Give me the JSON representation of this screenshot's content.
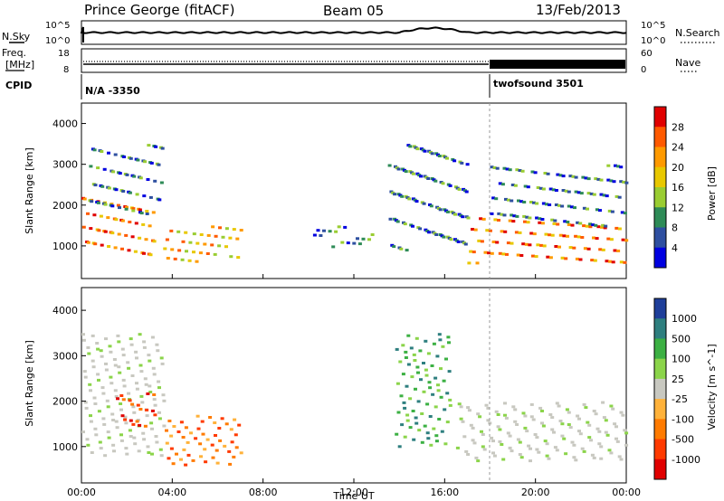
{
  "header": {
    "station": "Prince George (fitACF)",
    "beam": "Beam 05",
    "date": "13/Feb/2013"
  },
  "nsky_panel": {
    "left_label": "N.Sky",
    "right_label": "N.Search",
    "left_ticks": [
      "10^5",
      "10^0"
    ],
    "right_ticks": [
      "10^5",
      "10^0"
    ]
  },
  "freq_panel": {
    "left_label_1": "Freq.",
    "left_label_2": "[MHz]",
    "right_label": "Nave",
    "left_ticks": [
      "18",
      "8"
    ],
    "right_ticks": [
      "60",
      "0"
    ]
  },
  "cpid_panel": {
    "label": "CPID",
    "segments": [
      {
        "name": "N/A -3350",
        "start_hour": 0
      },
      {
        "name": "twofsound 3501",
        "start_hour": 18
      }
    ]
  },
  "chart_data": [
    {
      "type": "heatmap",
      "name": "power",
      "ylabel": "Slant Range [km]",
      "xlabel": "",
      "x_range_hours": [
        0,
        24
      ],
      "ylim": [
        200,
        4500
      ],
      "yticks": [
        "1000",
        "2000",
        "3000",
        "4000"
      ],
      "colorbar": {
        "label": "Power [dB]",
        "ticks": [
          "28",
          "24",
          "20",
          "16",
          "12",
          "8",
          "4"
        ],
        "colors": [
          "#e00000",
          "#ff5a00",
          "#ff9a00",
          "#e8c800",
          "#9acd32",
          "#2e8b57",
          "#2e4fa0",
          "#0000e0"
        ]
      },
      "regions": [
        {
          "t0": 0.0,
          "t1": 3.2,
          "r0": 800,
          "r1": 2200,
          "level": "high"
        },
        {
          "t0": 0.3,
          "t1": 3.6,
          "r0": 1800,
          "r1": 3500,
          "level": "low"
        },
        {
          "t0": 3.6,
          "t1": 7.0,
          "r0": 600,
          "r1": 1500,
          "level": "mid"
        },
        {
          "t0": 10.0,
          "t1": 12.8,
          "r0": 1000,
          "r1": 1500,
          "level": "low"
        },
        {
          "t0": 13.5,
          "t1": 17.0,
          "r0": 900,
          "r1": 3500,
          "level": "low"
        },
        {
          "t0": 17.0,
          "t1": 24.0,
          "r0": 600,
          "r1": 1700,
          "level": "high"
        },
        {
          "t0": 18.0,
          "t1": 24.0,
          "r0": 1500,
          "r1": 3000,
          "level": "low"
        }
      ]
    },
    {
      "type": "heatmap",
      "name": "velocity",
      "ylabel": "Slant Range [km]",
      "xlabel": "Time UT",
      "x_range_hours": [
        0,
        24
      ],
      "ylim": [
        200,
        4500
      ],
      "yticks": [
        "1000",
        "2000",
        "3000",
        "4000"
      ],
      "xticks": [
        "00:00",
        "04:00",
        "08:00",
        "12:00",
        "16:00",
        "20:00",
        "00:00"
      ],
      "colorbar": {
        "label": "Velocity [m s^-1]",
        "ticks": [
          "1000",
          "500",
          "100",
          "25",
          "-25",
          "-100",
          "-500",
          "-1000"
        ],
        "colors": [
          "#1f3f9a",
          "#2e7f7f",
          "#3cb043",
          "#8bd44a",
          "#c8c8c0",
          "#ffb23a",
          "#ff7b00",
          "#ff3a00",
          "#e00000"
        ]
      },
      "regions": [
        {
          "t0": 0.0,
          "t1": 3.6,
          "r0": 800,
          "r1": 3500,
          "level": "gray"
        },
        {
          "t0": 1.5,
          "t1": 3.2,
          "r0": 1400,
          "r1": 2200,
          "level": "red"
        },
        {
          "t0": 3.6,
          "t1": 7.0,
          "r0": 600,
          "r1": 1700,
          "level": "orange"
        },
        {
          "t0": 13.8,
          "t1": 16.2,
          "r0": 1000,
          "r1": 3500,
          "level": "green"
        },
        {
          "t0": 16.5,
          "t1": 24.0,
          "r0": 700,
          "r1": 2000,
          "level": "gray"
        }
      ]
    }
  ]
}
